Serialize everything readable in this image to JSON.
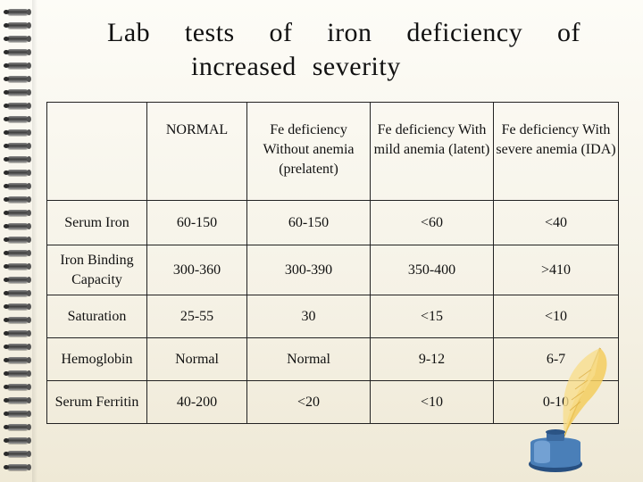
{
  "title": {
    "line1": [
      "Lab",
      "tests",
      "of",
      "iron",
      "deficiency",
      "of"
    ],
    "line2": "increased severity"
  },
  "table": {
    "headers": [
      "",
      "NORMAL",
      "Fe deficiency Without anemia (prelatent)",
      "Fe deficiency With mild anemia (latent)",
      "Fe deficiency With severe anemia (IDA)"
    ],
    "rows": [
      {
        "label": "Serum Iron",
        "cells": [
          "60-150",
          "60-150",
          "<60",
          "<40"
        ]
      },
      {
        "label": "Iron Binding Capacity",
        "cells": [
          "300-360",
          "300-390",
          "350-400",
          ">410"
        ]
      },
      {
        "label": "Saturation",
        "cells": [
          "25-55",
          "30",
          "<15",
          "<10"
        ]
      },
      {
        "label": "Hemoglobin",
        "cells": [
          "Normal",
          "Normal",
          "9-12",
          "6-7"
        ]
      },
      {
        "label": "Serum Ferritin",
        "cells": [
          "40-200",
          "<20",
          "<10",
          "0-10"
        ]
      }
    ]
  },
  "decoration": {
    "icons": [
      "spiral-binding",
      "quill-pen-icon",
      "inkwell-icon"
    ]
  },
  "colors": {
    "paper": "#f6f3e8",
    "ink": "#111111",
    "inkwell_glass": "#4a7fb8",
    "quill": "#f0c24a"
  }
}
